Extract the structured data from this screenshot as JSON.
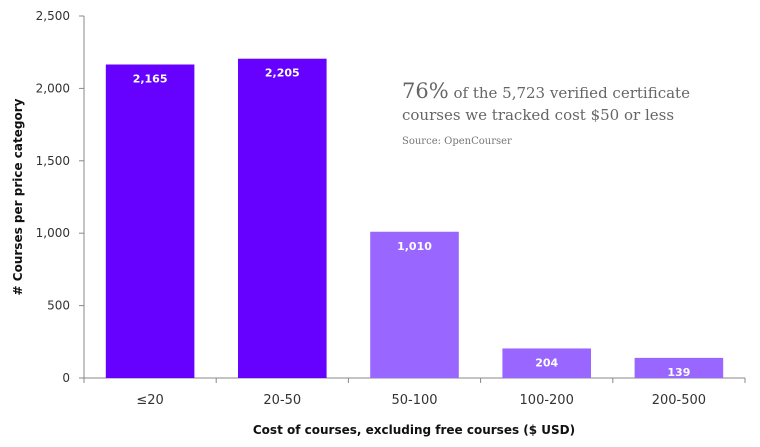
{
  "chart_data": {
    "type": "bar",
    "title": "",
    "xlabel": "Cost of courses, excluding free courses ($ USD)",
    "ylabel": "# Courses per price category",
    "categories": [
      "≤20",
      "20-50",
      "50-100",
      "100-200",
      "200-500"
    ],
    "values": [
      2165,
      2205,
      1010,
      204,
      139
    ],
    "value_labels": [
      "2,165",
      "2,205",
      "1,010",
      "204",
      "139"
    ],
    "bar_colors": [
      "#6600ff",
      "#6600ff",
      "#9966ff",
      "#9966ff",
      "#9966ff"
    ],
    "ylim": [
      0,
      2500
    ],
    "yticks": [
      0,
      500,
      1000,
      1500,
      2000,
      2500
    ],
    "ytick_labels": [
      "0",
      "500",
      "1,000",
      "1,500",
      "2,000",
      "2,500"
    ],
    "grid": false,
    "legend": "none"
  },
  "annotation": {
    "percent": "76%",
    "line1_rest": "of the 5,723 verified certificate",
    "line2": "courses we tracked cost $50 or less",
    "source": "Source: OpenCourser"
  }
}
